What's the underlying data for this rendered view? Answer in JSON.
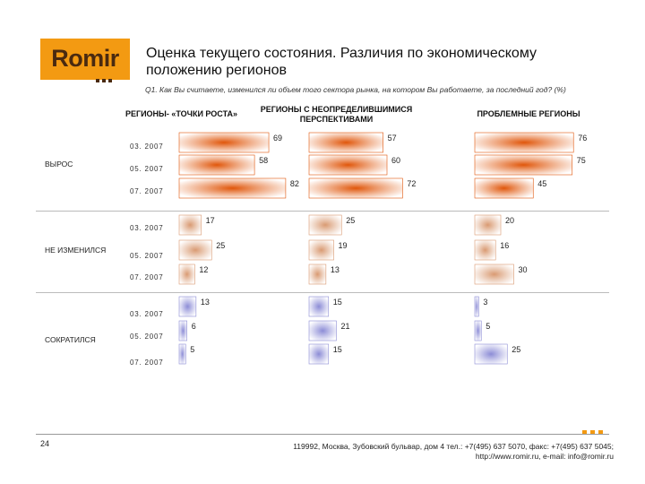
{
  "logo": {
    "text": "Romir"
  },
  "title": "Оценка текущего состояния. Различия по экономическому положению регионов",
  "question": "Q1. Как Вы считаете, изменился ли объем того сектора рынка, на котором Вы работаете, за последний год? (%)",
  "columns": [
    {
      "label": "РЕГИОНЫ- «ТОЧКИ РОСТА»"
    },
    {
      "label": "РЕГИОНЫ  С НЕОПРЕДЕЛИВШИМИСЯ ПЕРСПЕКТИВАМИ"
    },
    {
      "label": "ПРОБЛЕМНЫЕ РЕГИОНЫ"
    }
  ],
  "groups": [
    {
      "label": "ВЫРОС",
      "color": "#e0560a"
    },
    {
      "label": "НЕ ИЗМЕНИЛСЯ",
      "color": "#d99a72"
    },
    {
      "label": "СОКРАТИЛСЯ",
      "color": "#8c8cd6"
    }
  ],
  "dates": [
    "03. 2007",
    "05. 2007",
    "07. 2007"
  ],
  "chart_data": {
    "type": "bar",
    "orientation": "horizontal",
    "panels": [
      "РЕГИОНЫ- «ТОЧКИ РОСТА»",
      "РЕГИОНЫ  С НЕОПРЕДЕЛИВШИМИСЯ ПЕРСПЕКТИВАМИ",
      "ПРОБЛЕМНЫЕ РЕГИОНЫ"
    ],
    "categories": [
      "03. 2007",
      "05. 2007",
      "07. 2007"
    ],
    "series": [
      {
        "name": "ВЫРОС",
        "values": [
          [
            69,
            58,
            82
          ],
          [
            57,
            60,
            72
          ],
          [
            76,
            75,
            45
          ]
        ]
      },
      {
        "name": "НЕ ИЗМЕНИЛСЯ",
        "values": [
          [
            17,
            25,
            12
          ],
          [
            25,
            19,
            13
          ],
          [
            20,
            16,
            30
          ]
        ]
      },
      {
        "name": "СОКРАТИЛСЯ",
        "values": [
          [
            13,
            6,
            5
          ],
          [
            15,
            21,
            15
          ],
          [
            3,
            5,
            25
          ]
        ]
      }
    ]
  },
  "footer": {
    "page": "24",
    "address_line1": "119992, Москва, Зубовский бульвар, дом 4   тел.: +7(495) 637 5070, факс: +7(495) 637 5045;",
    "address_line2": "http://www.romir.ru, e-mail: info@romir.ru"
  }
}
